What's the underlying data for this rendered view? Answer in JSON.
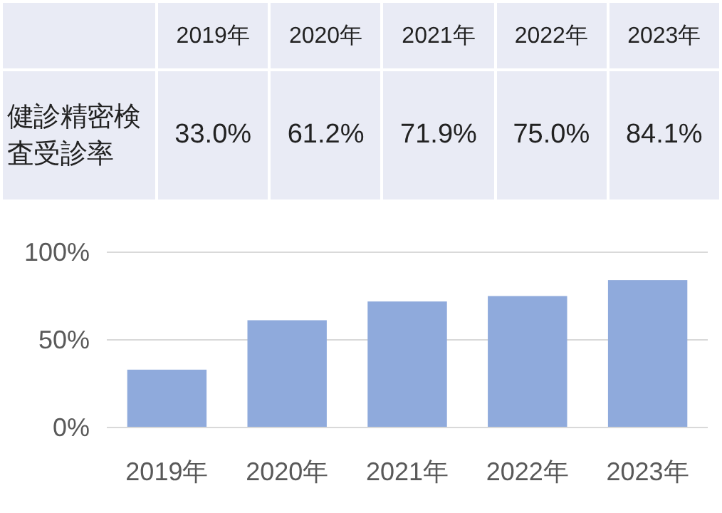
{
  "chart_data": {
    "type": "bar",
    "categories": [
      "2019年",
      "2020年",
      "2021年",
      "2022年",
      "2023年"
    ],
    "series": [
      {
        "name": "健診精密検査受診率",
        "color": "#8faadc",
        "values": [
          33.0,
          61.2,
          71.9,
          75.0,
          84.1
        ],
        "value_labels": [
          "33.0%",
          "61.2%",
          "71.9%",
          "75.0%",
          "84.1%"
        ]
      }
    ],
    "ylim": [
      0,
      100
    ],
    "yticks": [
      {
        "value": 0,
        "label": "0%"
      },
      {
        "value": 50,
        "label": "50%"
      },
      {
        "value": 100,
        "label": "100%"
      }
    ],
    "grid": "y"
  }
}
